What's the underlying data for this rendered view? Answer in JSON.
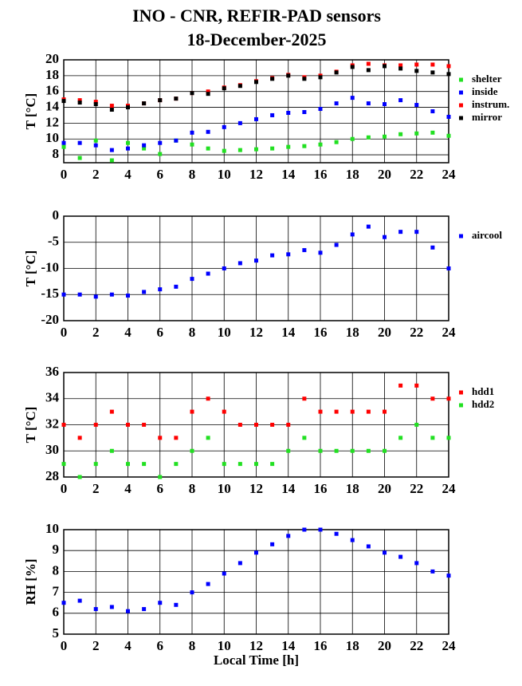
{
  "chart_data": [
    {
      "type": "scatter",
      "title": "INO - CNR, REFIR-PAD sensors",
      "subtitle": "18-December-2025",
      "ylabel": "T [°C]",
      "x": [
        0,
        1,
        2,
        3,
        4,
        5,
        6,
        7,
        8,
        9,
        10,
        11,
        12,
        13,
        14,
        15,
        16,
        17,
        18,
        19,
        20,
        21,
        22,
        23,
        24
      ],
      "series": [
        {
          "name": "shelter",
          "color": "#22e022",
          "values": [
            9,
            7.6,
            9.8,
            7.3,
            9.5,
            8.8,
            8.1,
            9.8,
            9.3,
            8.8,
            8.5,
            8.6,
            8.7,
            8.8,
            9,
            9.1,
            9.3,
            9.6,
            10,
            10.2,
            10.3,
            10.6,
            10.7,
            10.8,
            10.4
          ]
        },
        {
          "name": "inside",
          "color": "#0000ff",
          "values": [
            9.5,
            9.5,
            9.2,
            8.6,
            8.8,
            9.2,
            9.5,
            9.8,
            10.8,
            10.9,
            11.5,
            12,
            12.5,
            13,
            13.3,
            13.4,
            13.8,
            14.5,
            15.2,
            14.5,
            14.4,
            14.9,
            14.3,
            13.5,
            12.8
          ]
        },
        {
          "name": "instrum.",
          "color": "#ff0000",
          "values": [
            15,
            14.9,
            14.7,
            14.2,
            14.2,
            14.5,
            14.9,
            15.1,
            15.8,
            16,
            16.5,
            16.8,
            17.3,
            17.7,
            18.1,
            17.8,
            18,
            18.5,
            19.3,
            19.5,
            19.3,
            19.3,
            19.4,
            19.4,
            19.2
          ]
        },
        {
          "name": "mirror",
          "color": "#000000",
          "values": [
            14.8,
            14.6,
            14.4,
            13.7,
            14,
            14.5,
            14.9,
            15.1,
            15.8,
            15.7,
            16.4,
            16.7,
            17.2,
            17.6,
            18,
            17.6,
            17.8,
            18.4,
            19.1,
            18.7,
            19.2,
            18.9,
            18.6,
            18.4,
            18.2
          ]
        }
      ],
      "xlim": [
        0,
        24
      ],
      "xticks": [
        0,
        2,
        4,
        6,
        8,
        10,
        12,
        14,
        16,
        18,
        20,
        22,
        24
      ],
      "ylim": [
        7,
        20
      ],
      "yticks": [
        8,
        10,
        12,
        14,
        16,
        18,
        20
      ],
      "grid": true
    },
    {
      "type": "scatter",
      "ylabel": "T [°C]",
      "x": [
        0,
        1,
        2,
        3,
        4,
        5,
        6,
        7,
        8,
        9,
        10,
        11,
        12,
        13,
        14,
        15,
        16,
        17,
        18,
        19,
        20,
        21,
        22,
        23,
        24
      ],
      "series": [
        {
          "name": "aircool",
          "color": "#0000ff",
          "values": [
            -15,
            -15,
            -15.4,
            -15,
            -15.2,
            -14.5,
            -14,
            -13.5,
            -12,
            -11,
            -10,
            -9,
            -8.5,
            -7.5,
            -7.3,
            -6.5,
            -7,
            -5.5,
            -3.5,
            -2,
            -4,
            -3,
            -3,
            -6,
            -10
          ]
        }
      ],
      "xlim": [
        0,
        24
      ],
      "xticks": [
        0,
        2,
        4,
        6,
        8,
        10,
        12,
        14,
        16,
        18,
        20,
        22,
        24
      ],
      "ylim": [
        -20,
        0
      ],
      "yticks": [
        -20,
        -15,
        -10,
        -5,
        0
      ],
      "grid": true
    },
    {
      "type": "scatter",
      "ylabel": "T [°C]",
      "x": [
        0,
        1,
        2,
        3,
        4,
        5,
        6,
        7,
        8,
        9,
        10,
        11,
        12,
        13,
        14,
        15,
        16,
        17,
        18,
        19,
        20,
        21,
        22,
        23,
        24
      ],
      "series": [
        {
          "name": "hdd1",
          "color": "#ff0000",
          "values": [
            32,
            31,
            32,
            33,
            32,
            32,
            31,
            31,
            33,
            34,
            33,
            32,
            32,
            32,
            32,
            34,
            33,
            33,
            33,
            33,
            33,
            35,
            35,
            34,
            34
          ]
        },
        {
          "name": "hdd2",
          "color": "#22e022",
          "values": [
            29,
            28,
            29,
            30,
            29,
            29,
            28,
            29,
            30,
            31,
            29,
            29,
            29,
            29,
            30,
            31,
            30,
            30,
            30,
            30,
            30,
            31,
            32,
            31,
            31
          ]
        }
      ],
      "xlim": [
        0,
        24
      ],
      "xticks": [
        0,
        2,
        4,
        6,
        8,
        10,
        12,
        14,
        16,
        18,
        20,
        22,
        24
      ],
      "ylim": [
        28,
        36
      ],
      "yticks": [
        28,
        30,
        32,
        34,
        36
      ],
      "grid": true
    },
    {
      "type": "scatter",
      "ylabel": "RH [%]",
      "xlabel": "Local Time [h]",
      "x": [
        0,
        1,
        2,
        3,
        4,
        5,
        6,
        7,
        8,
        9,
        10,
        11,
        12,
        13,
        14,
        15,
        16,
        17,
        18,
        19,
        20,
        21,
        22,
        23,
        24
      ],
      "series": [
        {
          "color": "#0000ff",
          "values": [
            6.5,
            6.6,
            6.2,
            6.3,
            6.1,
            6.2,
            6.5,
            6.4,
            7,
            7.4,
            7.9,
            8.4,
            8.9,
            9.3,
            9.7,
            10,
            10,
            9.8,
            9.5,
            9.2,
            8.9,
            8.7,
            8.4,
            8,
            7.8
          ]
        }
      ],
      "xlim": [
        0,
        24
      ],
      "xticks": [
        0,
        2,
        4,
        6,
        8,
        10,
        12,
        14,
        16,
        18,
        20,
        22,
        24
      ],
      "ylim": [
        5,
        10
      ],
      "yticks": [
        5,
        6,
        7,
        8,
        9,
        10
      ],
      "grid": true
    }
  ]
}
